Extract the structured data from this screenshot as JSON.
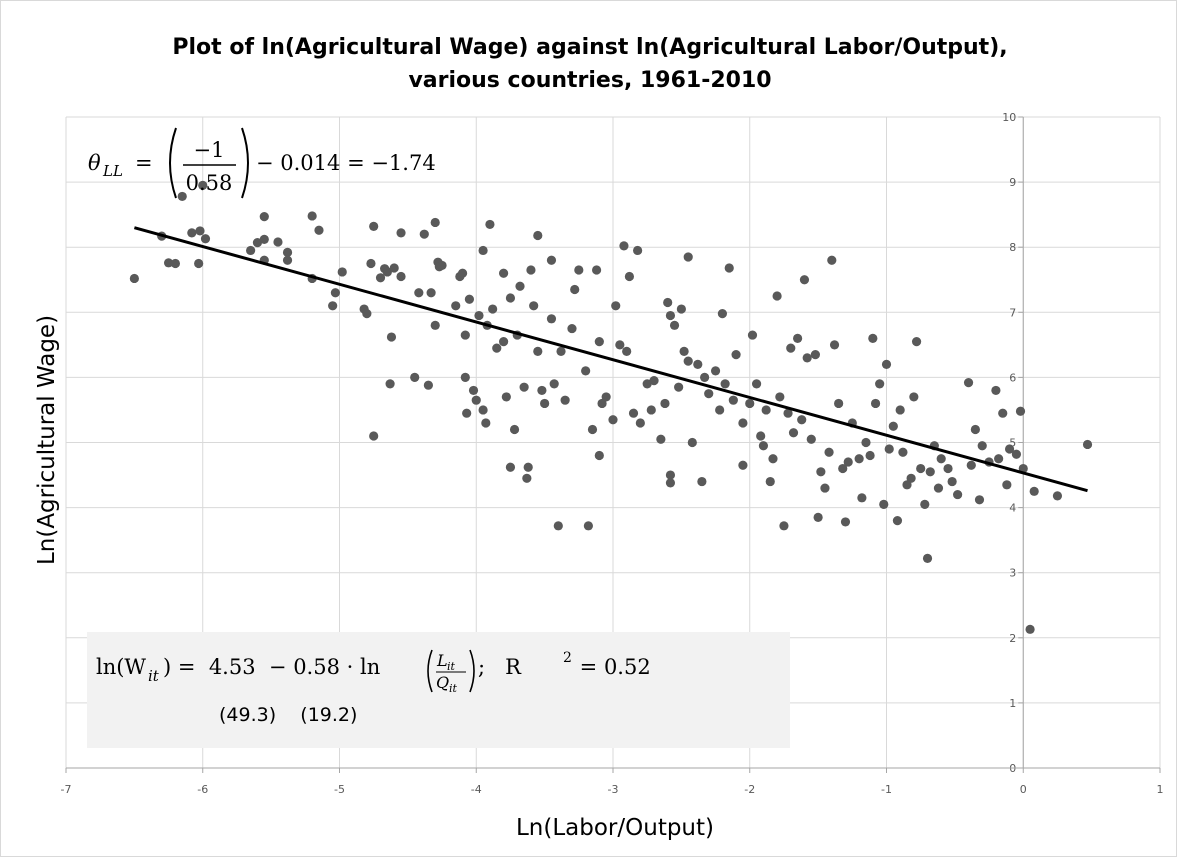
{
  "chart_data": {
    "type": "scatter",
    "title": [
      "Plot of ln(Agricultural Wage) against ln(Agricultural Labor/Output),",
      "various countries, 1961-2010"
    ],
    "x_label": "Ln(Labor/Output)",
    "y_label": "Ln(Agricultural Wage)",
    "xlim": [
      -7,
      1
    ],
    "ylim": [
      0,
      10
    ],
    "xticks": [
      -7,
      -6,
      -5,
      -4,
      -3,
      -2,
      -1,
      0,
      1
    ],
    "yticks": [
      0,
      1,
      2,
      3,
      4,
      5,
      6,
      7,
      8,
      9,
      10
    ],
    "grid": true,
    "color": "#595959",
    "x": [
      -6.5,
      -6.3,
      -6.25,
      -6.2,
      -6.15,
      -6.08,
      -6.03,
      -6.02,
      -6.0,
      -5.98,
      -5.65,
      -5.6,
      -5.55,
      -5.55,
      -5.55,
      -5.45,
      -5.38,
      -5.38,
      -5.2,
      -5.2,
      -5.15,
      -5.05,
      -5.03,
      -4.98,
      -4.82,
      -4.8,
      -4.77,
      -4.75,
      -4.75,
      -4.7,
      -4.67,
      -4.65,
      -4.63,
      -4.62,
      -4.6,
      -4.55,
      -4.55,
      -4.45,
      -4.42,
      -4.38,
      -4.35,
      -4.33,
      -4.3,
      -4.3,
      -4.28,
      -4.27,
      -4.25,
      -4.15,
      -4.12,
      -4.1,
      -4.08,
      -4.08,
      -4.07,
      -4.05,
      -4.02,
      -4.0,
      -3.98,
      -3.95,
      -3.95,
      -3.93,
      -3.92,
      -3.9,
      -3.88,
      -3.85,
      -3.8,
      -3.8,
      -3.78,
      -3.75,
      -3.75,
      -3.72,
      -3.7,
      -3.68,
      -3.65,
      -3.63,
      -3.62,
      -3.6,
      -3.58,
      -3.55,
      -3.55,
      -3.52,
      -3.5,
      -3.45,
      -3.45,
      -3.43,
      -3.4,
      -3.38,
      -3.35,
      -3.3,
      -3.28,
      -3.25,
      -3.2,
      -3.18,
      -3.15,
      -3.12,
      -3.1,
      -3.1,
      -3.08,
      -3.05,
      -3.0,
      -2.98,
      -2.95,
      -2.92,
      -2.9,
      -2.88,
      -2.85,
      -2.82,
      -2.8,
      -2.75,
      -2.72,
      -2.7,
      -2.65,
      -2.62,
      -2.6,
      -2.58,
      -2.58,
      -2.58,
      -2.55,
      -2.52,
      -2.5,
      -2.48,
      -2.45,
      -2.45,
      -2.42,
      -2.38,
      -2.35,
      -2.33,
      -2.3,
      -2.25,
      -2.22,
      -2.2,
      -2.18,
      -2.15,
      -2.12,
      -2.1,
      -2.05,
      -2.05,
      -2.0,
      -1.98,
      -1.95,
      -1.92,
      -1.9,
      -1.88,
      -1.85,
      -1.83,
      -1.8,
      -1.78,
      -1.75,
      -1.72,
      -1.7,
      -1.68,
      -1.65,
      -1.62,
      -1.6,
      -1.58,
      -1.55,
      -1.52,
      -1.5,
      -1.48,
      -1.45,
      -1.42,
      -1.4,
      -1.38,
      -1.35,
      -1.32,
      -1.3,
      -1.28,
      -1.25,
      -1.2,
      -1.18,
      -1.15,
      -1.12,
      -1.1,
      -1.08,
      -1.05,
      -1.02,
      -1.0,
      -0.98,
      -0.95,
      -0.92,
      -0.9,
      -0.88,
      -0.85,
      -0.82,
      -0.8,
      -0.78,
      -0.75,
      -0.72,
      -0.7,
      -0.68,
      -0.65,
      -0.62,
      -0.6,
      -0.55,
      -0.52,
      -0.48,
      -0.4,
      -0.38,
      -0.35,
      -0.32,
      -0.3,
      -0.25,
      -0.2,
      -0.18,
      -0.15,
      -0.12,
      -0.1,
      -0.05,
      -0.02,
      0.0,
      0.05,
      0.08,
      0.25,
      0.47
    ],
    "values": [
      7.52,
      8.17,
      7.76,
      7.75,
      8.78,
      8.22,
      7.75,
      8.25,
      8.95,
      8.13,
      7.95,
      8.07,
      8.12,
      8.47,
      7.8,
      8.08,
      7.92,
      7.8,
      8.48,
      7.52,
      8.26,
      7.1,
      7.3,
      7.62,
      7.05,
      6.98,
      7.75,
      8.32,
      5.1,
      7.53,
      7.67,
      7.62,
      5.9,
      6.62,
      7.68,
      8.22,
      7.55,
      6.0,
      7.3,
      8.2,
      5.88,
      7.3,
      6.8,
      8.38,
      7.77,
      7.7,
      7.72,
      7.1,
      7.55,
      7.6,
      6.65,
      6.0,
      5.45,
      7.2,
      5.8,
      5.65,
      6.95,
      7.95,
      5.5,
      5.3,
      6.8,
      8.35,
      7.05,
      6.45,
      6.55,
      7.6,
      5.7,
      4.62,
      7.22,
      5.2,
      6.65,
      7.4,
      5.85,
      4.45,
      4.62,
      7.65,
      7.1,
      8.18,
      6.4,
      5.8,
      5.6,
      7.8,
      6.9,
      5.9,
      3.72,
      6.4,
      5.65,
      6.75,
      7.35,
      7.65,
      6.1,
      3.72,
      5.2,
      7.65,
      4.8,
      6.55,
      5.6,
      5.7,
      5.35,
      7.1,
      6.5,
      8.02,
      6.4,
      7.55,
      5.45,
      7.95,
      5.3,
      5.9,
      5.5,
      5.95,
      5.05,
      5.6,
      7.15,
      6.95,
      4.5,
      4.38,
      6.8,
      5.85,
      7.05,
      6.4,
      7.85,
      6.25,
      5.0,
      6.2,
      4.4,
      6.0,
      5.75,
      6.1,
      5.5,
      6.98,
      5.9,
      7.68,
      5.65,
      6.35,
      5.3,
      4.65,
      5.6,
      6.65,
      5.9,
      5.1,
      4.95,
      5.5,
      4.4,
      4.75,
      7.25,
      5.7,
      3.72,
      5.45,
      6.45,
      5.15,
      6.6,
      5.35,
      7.5,
      6.3,
      5.05,
      6.35,
      3.85,
      4.55,
      4.3,
      4.85,
      7.8,
      6.5,
      5.6,
      4.6,
      3.78,
      4.7,
      5.3,
      4.75,
      4.15,
      5.0,
      4.8,
      6.6,
      5.6,
      5.9,
      4.05,
      6.2,
      4.9,
      5.25,
      3.8,
      5.5,
      4.85,
      4.35,
      4.45,
      5.7,
      6.55,
      4.6,
      4.05,
      3.22,
      4.55,
      4.95,
      4.3,
      4.75,
      4.6,
      4.4,
      4.2,
      5.92,
      4.65,
      5.2,
      4.12,
      4.95,
      4.7,
      5.8,
      4.75,
      5.45,
      4.35,
      4.9,
      4.82,
      5.48,
      4.6,
      2.13,
      4.25,
      4.18,
      4.97
    ],
    "trendline": {
      "color": "#000000",
      "x": [
        -6.5,
        0.47
      ],
      "values": [
        8.3,
        4.26
      ]
    },
    "annotation_theta": {
      "symbol": "θ",
      "subscript": "LL",
      "equals": "=",
      "numerator": "−1",
      "denominator": "0.58",
      "tail": "− 0.014 = −1.74"
    },
    "annotation_regression": {
      "lhs": "ln(W",
      "lhs_sub": "it",
      "mid": ") =  4.53  − 0.58 · ln",
      "num": "L",
      "num_sub": "it",
      "den": "Q",
      "den_sub": "it",
      "tail": ";   R",
      "sup": "2",
      "end": " = 0.52",
      "std_errors": "(49.3)    (19.2)"
    }
  }
}
